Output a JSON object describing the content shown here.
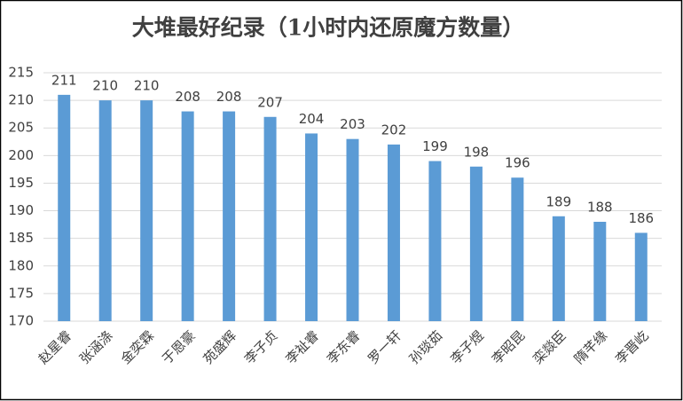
{
  "chart_data": {
    "type": "bar",
    "title": "大堆最好纪录（1小时内还原魔方数量）",
    "categories": [
      "赵星睿",
      "张涵涤",
      "金奕霖",
      "于恩豪",
      "苑盛辉",
      "李子贞",
      "李祉睿",
      "李东睿",
      "罗一轩",
      "孙琰茹",
      "李子煜",
      "李昭昆",
      "栾燚臣",
      "隋芊缘",
      "李晋屹"
    ],
    "values": [
      211,
      210,
      210,
      208,
      208,
      207,
      204,
      203,
      202,
      199,
      198,
      196,
      189,
      188,
      186
    ],
    "color": "#5b9bd5",
    "ylim": [
      170,
      215
    ],
    "yticks": [
      170,
      175,
      180,
      185,
      190,
      195,
      200,
      205,
      210,
      215
    ],
    "grid": true
  }
}
